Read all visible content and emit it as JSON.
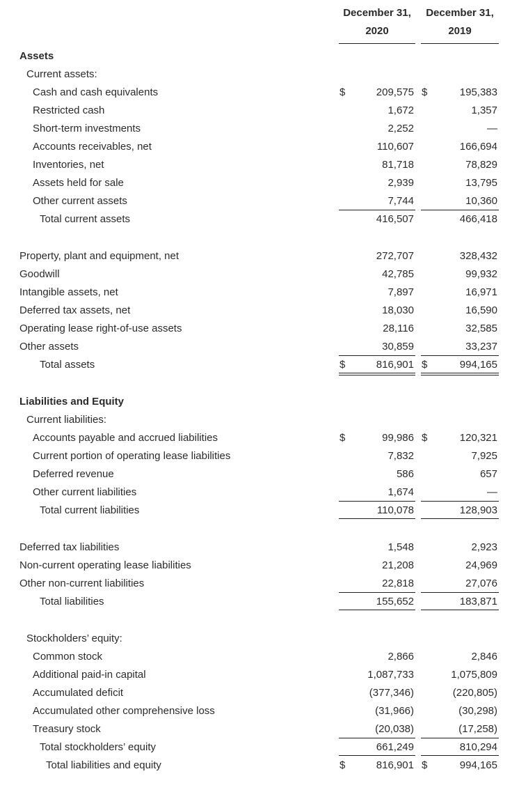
{
  "document": {
    "type": "balance-sheet",
    "colors": {
      "background": "#ffffff",
      "text": "#2b2b2b",
      "rule_lines": "#1f1f1f"
    }
  },
  "header": {
    "col2020": {
      "line1": "December 31,",
      "line2": "2020"
    },
    "col2019": {
      "line1": "December 31,",
      "line2": "2019"
    }
  },
  "table": {
    "rows": [
      {
        "label": "Assets",
        "indent": 0,
        "bold": true
      },
      {
        "label": "Current assets:",
        "indent": 1
      },
      {
        "label": "Cash and cash equivalents",
        "indent": 2,
        "d1": "$",
        "v1": "209,575",
        "d2": "$",
        "v2": "195,383"
      },
      {
        "label": "Restricted cash",
        "indent": 2,
        "v1": "1,672",
        "v2": "1,357"
      },
      {
        "label": "Short-term investments",
        "indent": 2,
        "v1": "2,252",
        "v2": "—"
      },
      {
        "label": "Accounts receivables, net",
        "indent": 2,
        "v1": "110,607",
        "v2": "166,694"
      },
      {
        "label": "Inventories, net",
        "indent": 2,
        "v1": "81,718",
        "v2": "78,829"
      },
      {
        "label": "Assets held for sale",
        "indent": 2,
        "v1": "2,939",
        "v2": "13,795"
      },
      {
        "label": "Other current assets",
        "indent": 2,
        "v1": "7,744",
        "v2": "10,360"
      },
      {
        "label": "Total current assets",
        "indent": 3,
        "v1": "416,507",
        "v2": "466,418",
        "lineTop": true
      },
      {
        "spacer": true
      },
      {
        "label": "Property, plant and equipment, net",
        "indent": 0,
        "v1": "272,707",
        "v2": "328,432"
      },
      {
        "label": "Goodwill",
        "indent": 0,
        "v1": "42,785",
        "v2": "99,932"
      },
      {
        "label": "Intangible assets, net",
        "indent": 0,
        "v1": "7,897",
        "v2": "16,971"
      },
      {
        "label": "Deferred tax assets, net",
        "indent": 0,
        "v1": "18,030",
        "v2": "16,590"
      },
      {
        "label": "Operating lease right-of-use assets",
        "indent": 0,
        "v1": "28,116",
        "v2": "32,585"
      },
      {
        "label": "Other assets",
        "indent": 0,
        "v1": "30,859",
        "v2": "33,237"
      },
      {
        "label": "Total assets",
        "indent": 3,
        "d1": "$",
        "v1": "816,901",
        "d2": "$",
        "v2": "994,165",
        "lineTop": true,
        "lineBottom": "double"
      },
      {
        "spacer": true
      },
      {
        "label": "Liabilities and Equity",
        "indent": 0,
        "bold": true
      },
      {
        "label": "Current liabilities:",
        "indent": 1
      },
      {
        "label": "Accounts payable and accrued liabilities",
        "indent": 2,
        "d1": "$",
        "v1": "99,986",
        "d2": "$",
        "v2": "120,321"
      },
      {
        "label": "Current portion of operating lease liabilities",
        "indent": 2,
        "v1": "7,832",
        "v2": "7,925"
      },
      {
        "label": "Deferred revenue",
        "indent": 2,
        "v1": "586",
        "v2": "657"
      },
      {
        "label": "Other current liabilities",
        "indent": 2,
        "v1": "1,674",
        "v2": "—"
      },
      {
        "label": "Total current liabilities",
        "indent": 3,
        "v1": "110,078",
        "v2": "128,903",
        "lineTop": true,
        "lineBottom": "single"
      },
      {
        "spacer": true
      },
      {
        "label": "Deferred tax liabilities",
        "indent": 0,
        "v1": "1,548",
        "v2": "2,923"
      },
      {
        "label": "Non-current operating lease liabilities",
        "indent": 0,
        "v1": "21,208",
        "v2": "24,969"
      },
      {
        "label": "Other non-current liabilities",
        "indent": 0,
        "v1": "22,818",
        "v2": "27,076"
      },
      {
        "label": "Total liabilities",
        "indent": 3,
        "v1": "155,652",
        "v2": "183,871",
        "lineTop": true,
        "lineBottom": "single"
      },
      {
        "spacer": true
      },
      {
        "label": "Stockholders’ equity:",
        "indent": 1
      },
      {
        "label": "Common stock",
        "indent": 2,
        "v1": "2,866",
        "v2": "2,846"
      },
      {
        "label": "Additional paid-in capital",
        "indent": 2,
        "v1": "1,087,733",
        "v2": "1,075,809"
      },
      {
        "label": "Accumulated deficit",
        "indent": 2,
        "v1": "(377,346)",
        "v2": "(220,805)"
      },
      {
        "label": "Accumulated other comprehensive loss",
        "indent": 2,
        "v1": "(31,966)",
        "v2": "(30,298)"
      },
      {
        "label": "Treasury stock",
        "indent": 2,
        "v1": "(20,038)",
        "v2": "(17,258)"
      },
      {
        "label": "Total stockholders’ equity",
        "indent": 3,
        "v1": "661,249",
        "v2": "810,294",
        "lineTop": true,
        "lineBottom": "single"
      },
      {
        "label": "Total liabilities and equity",
        "indent": 4,
        "d1": "$",
        "v1": "816,901",
        "d2": "$",
        "v2": "994,165"
      }
    ]
  }
}
